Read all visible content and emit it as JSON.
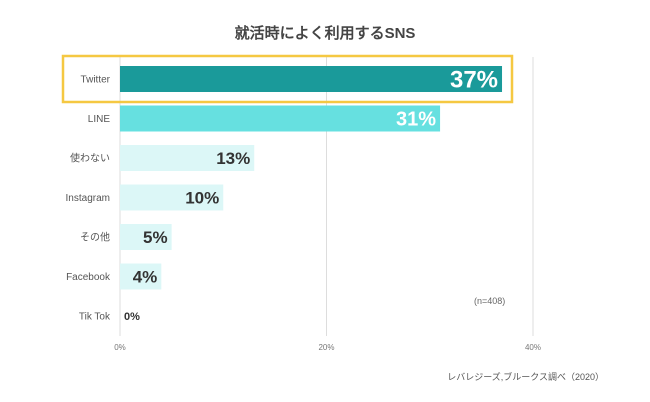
{
  "chart_data": {
    "type": "bar",
    "orientation": "horizontal",
    "title": "就活時によく利用するSNS",
    "categories": [
      "Twitter",
      "LINE",
      "使わない",
      "Instagram",
      "その他",
      "Facebook",
      "Tik Tok"
    ],
    "values": [
      37,
      31,
      13,
      10,
      5,
      4,
      0
    ],
    "data_labels": [
      "37%",
      "31%",
      "13%",
      "10%",
      "5%",
      "4%",
      "0%"
    ],
    "x_ticks": [
      0,
      20,
      40
    ],
    "x_tick_labels": [
      "0%",
      "20%",
      "40%"
    ],
    "xlim": [
      0,
      40
    ],
    "grid": true,
    "highlighted_category": "Twitter",
    "note": "(n=408)",
    "source": "レバレジーズ,ブルークス調べ（2020）"
  },
  "colors": {
    "top_bar": "#1a9a9a",
    "second_bar": "#66e0e0",
    "other_bars": "#dcf7f7",
    "highlight_box": "#f5c842",
    "grid": "#dddddd",
    "label_dark": "#333333",
    "label_light": "#ffffff"
  }
}
